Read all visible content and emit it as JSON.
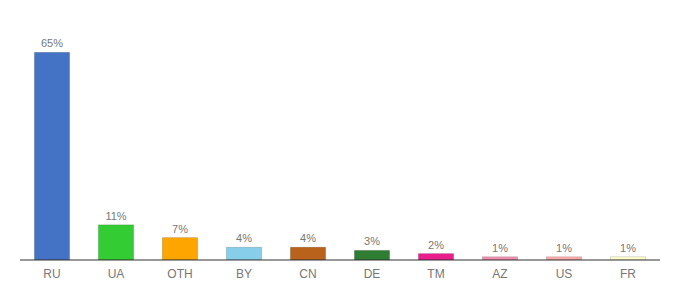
{
  "chart_data": {
    "type": "bar",
    "categories": [
      "RU",
      "UA",
      "OTH",
      "BY",
      "CN",
      "DE",
      "TM",
      "AZ",
      "US",
      "FR"
    ],
    "values": [
      65,
      11,
      7,
      4,
      4,
      3,
      2,
      1,
      1,
      1
    ],
    "value_labels": [
      "65%",
      "11%",
      "7%",
      "4%",
      "4%",
      "3%",
      "2%",
      "1%",
      "1%",
      "1%"
    ],
    "colors": [
      "#4472C4",
      "#33CC33",
      "#FFA500",
      "#87CEEB",
      "#B8621B",
      "#2E7D32",
      "#E91E8C",
      "#F48FB1",
      "#FFAAAA",
      "#FFFFCC"
    ],
    "ylim": [
      0,
      72
    ],
    "data_labels": true,
    "tick_labels": "x"
  }
}
